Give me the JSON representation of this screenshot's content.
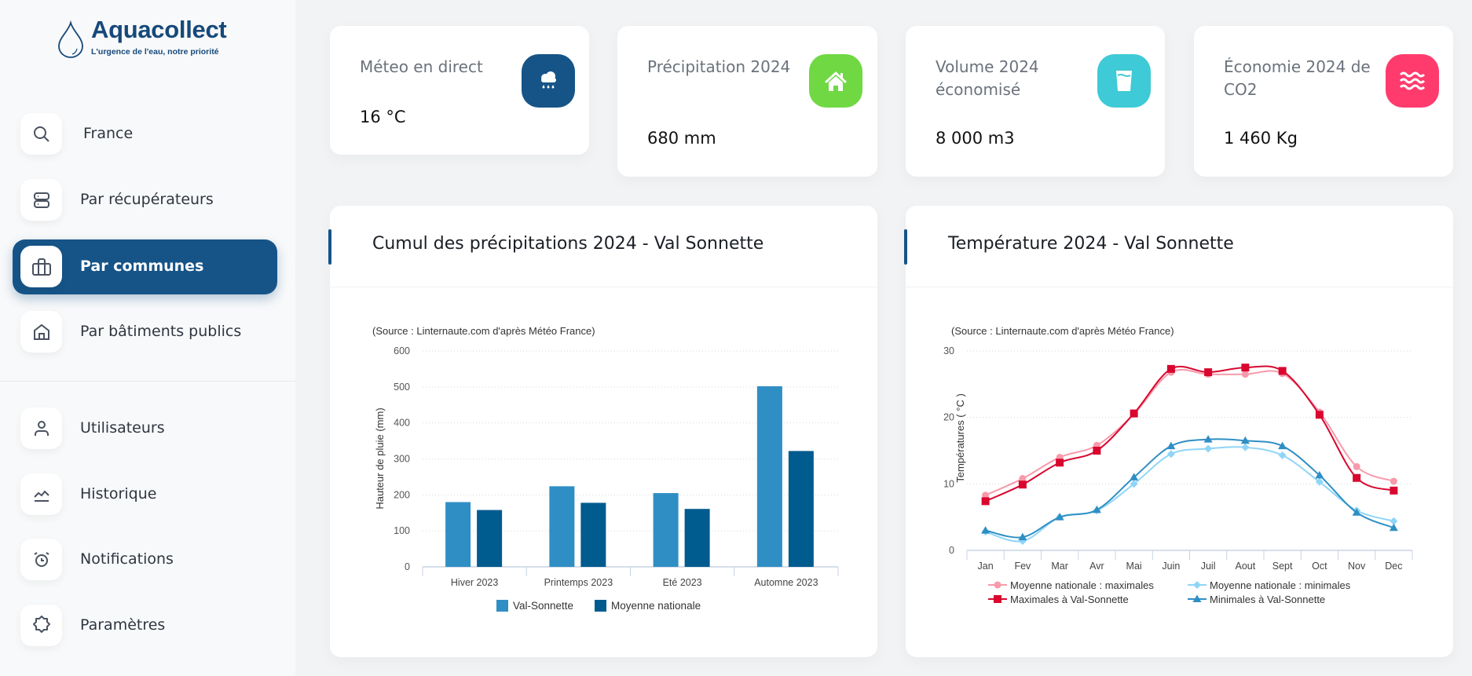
{
  "brand": {
    "name": "Aquacollect",
    "tagline": "L'urgence de l'eau, notre priorité"
  },
  "sidebar": {
    "items": [
      {
        "label": "France",
        "icon": "search-icon"
      },
      {
        "label": "Par récupérateurs",
        "icon": "server-icon"
      },
      {
        "label": "Par communes",
        "icon": "buildings-icon",
        "active": true
      },
      {
        "label": "Par bâtiments publics",
        "icon": "home-icon"
      },
      {
        "label": "Utilisateurs",
        "icon": "user-icon"
      },
      {
        "label": "Historique",
        "icon": "chart-line-icon"
      },
      {
        "label": "Notifications",
        "icon": "alarm-clock-icon"
      },
      {
        "label": "Paramètres",
        "icon": "gear-icon"
      }
    ]
  },
  "stats": [
    {
      "title": "Méteo en direct",
      "value": "16 °C",
      "icon": "cloud-rain-icon",
      "color": "#165488"
    },
    {
      "title": "Précipitation 2024",
      "value": "680 mm",
      "icon": "house-icon",
      "color": "#6fd843"
    },
    {
      "title": "Volume 2024 économisé",
      "value": "8 000 m3",
      "icon": "glass-water-icon",
      "color": "#3ecad6"
    },
    {
      "title": "Économie 2024 de CO2",
      "value": "1 460 Kg",
      "icon": "waves-icon",
      "color": "#ff3b6e"
    }
  ],
  "charts": {
    "precip_title": "Cumul des précipitations 2024 - Val Sonnette",
    "temp_title": "Température 2024 - Val Sonnette"
  },
  "chart_data": [
    {
      "type": "bar",
      "source": "(Source : Linternaute.com d'après Météo France)",
      "categories": [
        "Hiver 2023",
        "Printemps 2023",
        "Eté 2023",
        "Automne 2023"
      ],
      "series": [
        {
          "name": "Val-Sonnette",
          "values": [
            180,
            224,
            205,
            502
          ],
          "color": "#2f8fc4"
        },
        {
          "name": "Moyenne nationale",
          "values": [
            158,
            178,
            161,
            322
          ],
          "color": "#005b8f"
        }
      ],
      "ylabel": "Hauteur de pluie (mm)",
      "xlabel": "",
      "ylim": [
        0,
        600
      ],
      "yticks": [
        "0",
        "100",
        "200",
        "300",
        "400",
        "500",
        "600"
      ],
      "grid": true,
      "legend": "bottom"
    },
    {
      "type": "line",
      "source": "(Source : Linternaute.com d'après Météo France)",
      "x": [
        "Jan",
        "Fev",
        "Mar",
        "Avr",
        "Mai",
        "Juin",
        "Juil",
        "Aout",
        "Sept",
        "Oct",
        "Nov",
        "Dec"
      ],
      "series": [
        {
          "name": "Moyenne nationale : maximales",
          "values": [
            8.3,
            10.8,
            14,
            15.8,
            20.5,
            26.8,
            26.5,
            26.5,
            26.6,
            20.8,
            12.6,
            10.4
          ],
          "color": "#f79aab",
          "marker": "circle"
        },
        {
          "name": "Moyenne nationale : minimales",
          "values": [
            2.8,
            1.4,
            5,
            6,
            10,
            14.5,
            15.3,
            15.5,
            14.3,
            10.3,
            6,
            4.4
          ],
          "color": "#8fd5f7",
          "marker": "diamond"
        },
        {
          "name": "Maximales à Val-Sonnette",
          "values": [
            7.4,
            9.9,
            13.2,
            15,
            20.6,
            27.3,
            26.8,
            27.5,
            27,
            20.4,
            10.9,
            9
          ],
          "color": "#d9072f",
          "marker": "square"
        },
        {
          "name": "Minimales à Val-Sonnette",
          "values": [
            3,
            2,
            5,
            6.1,
            11,
            15.7,
            16.7,
            16.5,
            15.7,
            11.3,
            5.7,
            3.4
          ],
          "color": "#2f8fc4",
          "marker": "triangle"
        }
      ],
      "ylabel": "Températures ( °C )",
      "xlabel": "",
      "ylim": [
        0,
        30
      ],
      "yticks": [
        "0",
        "10",
        "20",
        "30"
      ],
      "grid": true,
      "legend": "bottom"
    }
  ]
}
